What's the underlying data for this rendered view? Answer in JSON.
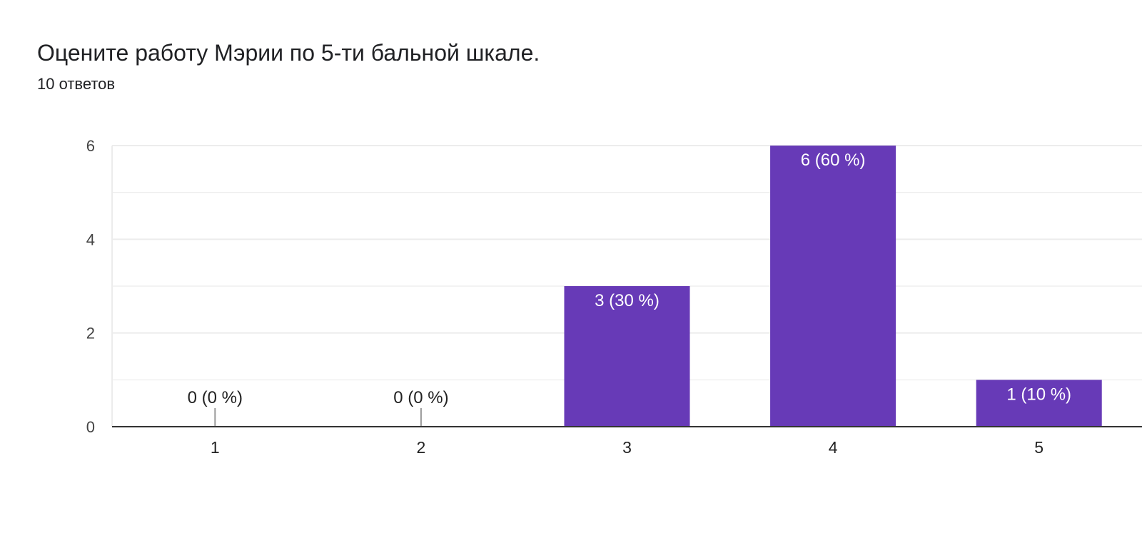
{
  "header": {
    "title": "Оцените работу Мэрии по 5-ти бальной шкале.",
    "response_count": "10 ответов"
  },
  "colors": {
    "bar": "#673ab7",
    "grid": "#ececec",
    "axis": "#333333",
    "zero_marker": "#999999"
  },
  "chart_data": {
    "type": "bar",
    "categories": [
      "1",
      "2",
      "3",
      "4",
      "5"
    ],
    "values": [
      0,
      0,
      3,
      6,
      1
    ],
    "data_labels": [
      "0 (0 %)",
      "0 (0 %)",
      "3 (30 %)",
      "6 (60 %)",
      "1 (10 %)"
    ],
    "y_ticks": [
      "0",
      "2",
      "4",
      "6"
    ],
    "ylim": [
      0,
      6
    ],
    "grid": true
  }
}
